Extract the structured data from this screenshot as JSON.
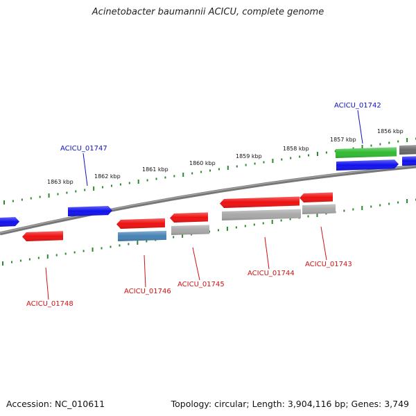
{
  "title": "Acinetobacter baumannii ACICU, complete genome",
  "footer": {
    "accession": "Accession: NC_010611",
    "summary": "Topology: circular; Length: 3,904,116 bp; Genes: 3,749"
  },
  "colors": {
    "backbone": "#777777",
    "tick": "#2a8a2a",
    "forward_label": "#1010c0",
    "reverse_label": "#d01010",
    "red": "#ee1111",
    "blue": "#1111ee",
    "green": "#33bb33",
    "steelblue": "#4682b4",
    "gray": "#a8a8a8",
    "darkgray": "#6a6a6a"
  },
  "scale_labels": [
    {
      "text": "1863 kbp"
    },
    {
      "text": "1862 kbp"
    },
    {
      "text": "1861 kbp"
    },
    {
      "text": "1860 kbp"
    },
    {
      "text": "1859 kbp"
    },
    {
      "text": "1858 kbp"
    },
    {
      "text": "1857 kbp"
    },
    {
      "text": "1856 kbp"
    }
  ],
  "gene_labels": [
    {
      "text": "ACICU_01742",
      "strand": "forward"
    },
    {
      "text": "ACICU_01747",
      "strand": "forward"
    },
    {
      "text": "ACICU_01748",
      "strand": "reverse"
    },
    {
      "text": "ACICU_01746",
      "strand": "reverse"
    },
    {
      "text": "ACICU_01745",
      "strand": "reverse"
    },
    {
      "text": "ACICU_01744",
      "strand": "reverse"
    },
    {
      "text": "ACICU_01743",
      "strand": "reverse"
    }
  ]
}
